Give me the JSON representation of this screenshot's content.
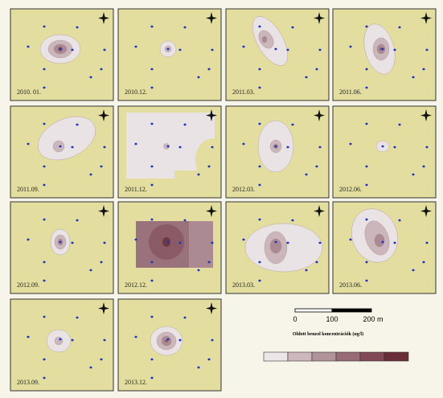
{
  "panels": [
    {
      "label": "2010. 01."
    },
    {
      "label": "2010.12."
    },
    {
      "label": "2011.03."
    },
    {
      "label": "2011.06."
    },
    {
      "label": "2011.09."
    },
    {
      "label": "2011.12."
    },
    {
      "label": "2012.03."
    },
    {
      "label": "2012.06."
    },
    {
      "label": "2012.09."
    },
    {
      "label": "2012.12."
    },
    {
      "label": "2013.03."
    },
    {
      "label": "2013.06."
    },
    {
      "label": "2013.09."
    },
    {
      "label": "2013.12."
    }
  ],
  "scale_bar": {
    "labels": [
      "0",
      "100",
      "200 m"
    ]
  },
  "legend": {
    "title": "Oldott benzol koncentrációk (ug/l)"
  }
}
